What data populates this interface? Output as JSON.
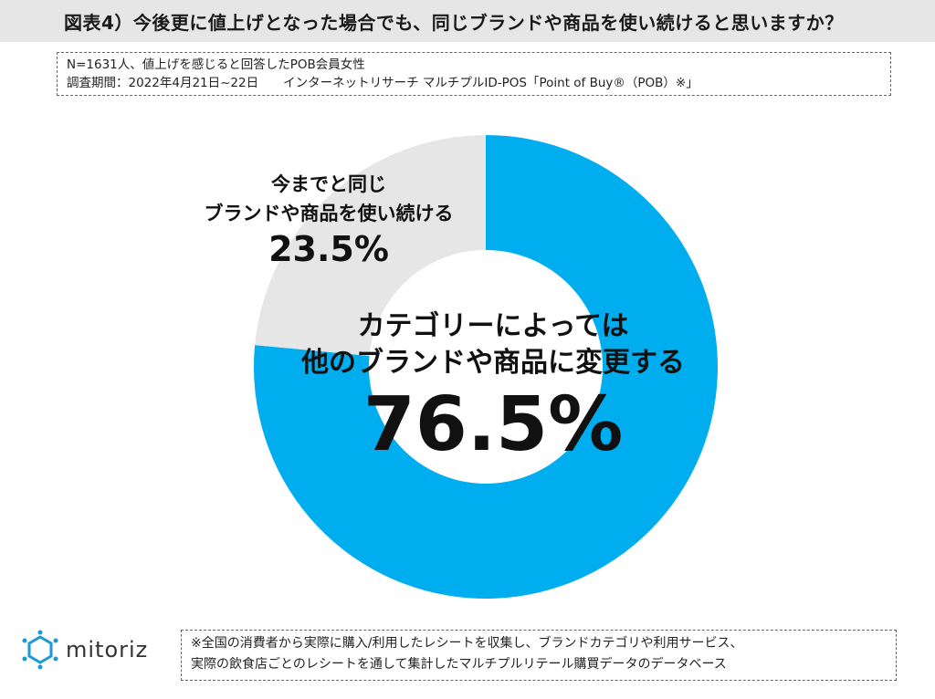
{
  "header": {
    "title": "図表4）今後更に値上げとなった場合でも、同じブランドや商品を使い続けると思いますか？"
  },
  "note": {
    "line1": "N=1631人、値上げを感じると回答したPOB会員女性",
    "line2": "調査期間：2022年4月21日~22日　　インターネットリサーチ マルチプルID-POS「Point of Buy®（POB）※」"
  },
  "chart_data": {
    "type": "pie",
    "donut": true,
    "title": "",
    "slices": [
      {
        "label_line1": "カテゴリーによっては",
        "label_line2": "他のブランドや商品に変更する",
        "value": 76.5,
        "value_label": "76.5%",
        "color": "#00aeef"
      },
      {
        "label_line1": "今までと同じ",
        "label_line2": "ブランドや商品を使い続ける",
        "value": 23.5,
        "value_label": "23.5%",
        "color": "#e6e6e6"
      }
    ]
  },
  "footer": {
    "logo": "mitoriz",
    "note_line1": "※全国の消費者から実際に購入/利用したレシートを収集し、ブランドカテゴリや利用サービス、",
    "note_line2": "実際の飲食店ごとのレシートを通して集計したマルチプルリテール購買データのデータベース"
  },
  "colors": {
    "accent": "#00aeef",
    "neutral": "#e6e6e6",
    "logo": "#1a9ad6"
  }
}
